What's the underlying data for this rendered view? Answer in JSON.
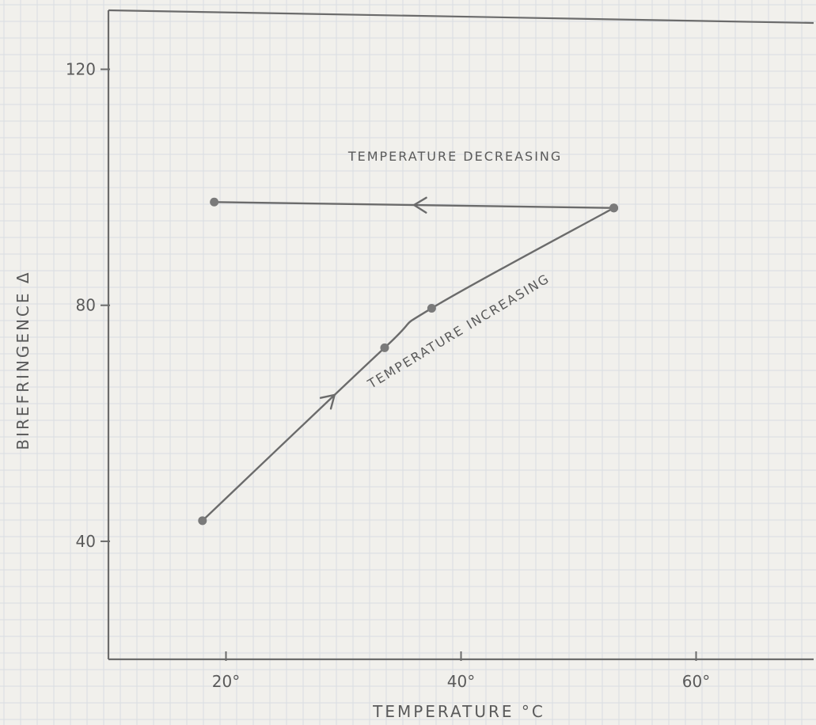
{
  "chart_data": {
    "type": "line",
    "xlabel": "TEMPERATURE °C",
    "ylabel": "BIREFRINGENCE Δ",
    "xlim": [
      10,
      70
    ],
    "ylim": [
      20,
      130
    ],
    "x_ticks": [
      {
        "value": 20,
        "label": "20°"
      },
      {
        "value": 40,
        "label": "40°"
      },
      {
        "value": 60,
        "label": "60°"
      }
    ],
    "y_ticks": [
      {
        "value": 40,
        "label": "40"
      },
      {
        "value": 80,
        "label": "80"
      },
      {
        "value": 120,
        "label": "120"
      }
    ],
    "grid": true,
    "series": [
      {
        "points": [
          {
            "x": 18,
            "y": 43.5
          },
          {
            "x": 33.5,
            "y": 72.8
          },
          {
            "x": 37.5,
            "y": 79.5
          },
          {
            "x": 53,
            "y": 96.5
          }
        ],
        "direction_arrow_at": 0.35
      },
      {
        "points": [
          {
            "x": 53,
            "y": 96.5
          },
          {
            "x": 19,
            "y": 97.5
          }
        ],
        "direction_arrow_at": 0.5
      }
    ],
    "annotations": [
      {
        "text": "TEMPERATURE DECREASING",
        "x": 39.5,
        "y": 104.5,
        "rotate": 0
      },
      {
        "text": "TEMPERATURE INCREASING",
        "x": 40,
        "y": 75,
        "rotate": -31
      }
    ],
    "colors": {
      "line": "#6b6b6b",
      "grid": "#d9dde2",
      "text": "#5a5a5a",
      "background": "#f1f0ec"
    }
  }
}
